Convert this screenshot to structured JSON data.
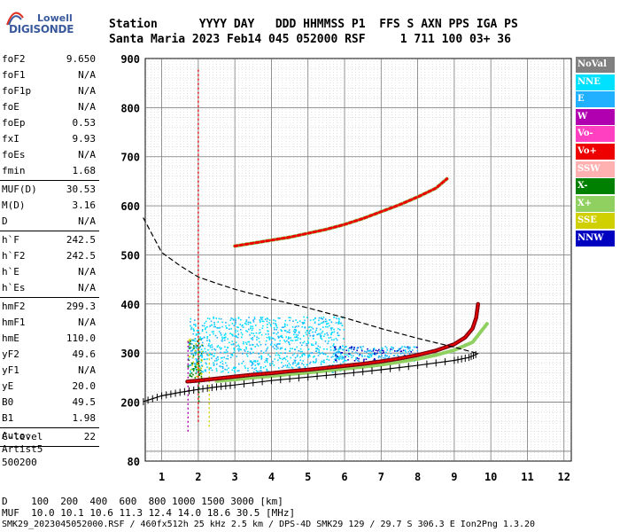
{
  "logo": {
    "line1": "Lowell",
    "line2": "DIGISONDE"
  },
  "header": {
    "labels": "Station      YYYY DAY   DDD HHMMSS P1  FFS S AXN PPS IGA PS",
    "values": "Santa Maria 2023 Feb14 045 052000 RSF     1 711 100 03+ 36"
  },
  "params": [
    {
      "name": "foF2",
      "value": "9.650"
    },
    {
      "name": "foF1",
      "value": "N/A"
    },
    {
      "name": "foF1p",
      "value": "N/A"
    },
    {
      "name": "foE",
      "value": "N/A"
    },
    {
      "name": "foEp",
      "value": "0.53"
    },
    {
      "name": "fxI",
      "value": "9.93"
    },
    {
      "name": "foEs",
      "value": "N/A"
    },
    {
      "name": "fmin",
      "value": "1.68"
    },
    {
      "sep": true
    },
    {
      "name": "MUF(D)",
      "value": "30.53"
    },
    {
      "name": "M(D)",
      "value": "3.16"
    },
    {
      "name": "D",
      "value": "N/A"
    },
    {
      "sep": true
    },
    {
      "name": "h`F",
      "value": "242.5"
    },
    {
      "name": "h`F2",
      "value": "242.5"
    },
    {
      "name": "h`E",
      "value": "N/A"
    },
    {
      "name": "h`Es",
      "value": "N/A"
    },
    {
      "sep": true
    },
    {
      "name": "hmF2",
      "value": "299.3"
    },
    {
      "name": "hmF1",
      "value": "N/A"
    },
    {
      "name": "hmE",
      "value": "110.0"
    },
    {
      "name": "yF2",
      "value": "49.6"
    },
    {
      "name": "yF1",
      "value": "N/A"
    },
    {
      "name": "yE",
      "value": "20.0"
    },
    {
      "name": "B0",
      "value": "49.5"
    },
    {
      "name": "B1",
      "value": "1.98"
    },
    {
      "sep": true
    },
    {
      "name": "C-level",
      "value": "22"
    },
    {
      "sep": true
    }
  ],
  "autoscale": {
    "line1": "Auto:",
    "line2": "Artist5",
    "line3": "500200"
  },
  "legend": [
    {
      "label": "NoVal",
      "color": "#808080"
    },
    {
      "label": "NNE",
      "color": "#00e0ff"
    },
    {
      "label": "E",
      "color": "#20b0ff"
    },
    {
      "label": "W",
      "color": "#b000b0"
    },
    {
      "label": "Vo-",
      "color": "#ff40c0"
    },
    {
      "label": "Vo+",
      "color": "#ee0000"
    },
    {
      "label": "SSW",
      "color": "#ffb0b0"
    },
    {
      "label": "X-",
      "color": "#008000"
    },
    {
      "label": "X+",
      "color": "#90d060"
    },
    {
      "label": "SSE",
      "color": "#d0d000"
    },
    {
      "label": "NNW",
      "color": "#0000c0"
    }
  ],
  "bottom": {
    "line1": "D    100  200  400  600  800 1000 1500 3000 [km]",
    "line2": "MUF  10.0 10.1 10.6 11.3 12.4 14.0 18.6 30.5 [MHz]",
    "line3": "SMK29_2023045052000.RSF / 460fx512h 25 kHz 2.5 km / DPS-4D SMK29 129 / 29.7 S 306.3 E Ion2Png 1.3.20"
  },
  "chart_data": {
    "type": "scatter",
    "xlabel": "",
    "ylabel": "",
    "xlim": [
      0.55,
      12.2
    ],
    "ylim": [
      80,
      900
    ],
    "xticks": [
      1,
      2,
      3,
      4,
      5,
      6,
      7,
      8,
      9,
      10,
      11,
      12
    ],
    "yticks": [
      80,
      200,
      300,
      400,
      500,
      600,
      700,
      800,
      900
    ],
    "grid": true,
    "series": [
      {
        "name": "Vo+",
        "x": [
          1.7,
          2.0,
          2.5,
          3.0,
          3.5,
          4.0,
          4.5,
          5.0,
          5.5,
          6.0,
          6.5,
          7.0,
          7.5,
          8.0,
          8.5,
          9.0,
          9.3,
          9.5,
          9.6,
          9.65
        ],
        "y": [
          242,
          244,
          248,
          252,
          256,
          259,
          263,
          266,
          270,
          274,
          278,
          283,
          289,
          296,
          305,
          318,
          332,
          350,
          372,
          400
        ]
      },
      {
        "name": "X+",
        "x": [
          2.5,
          3.0,
          3.5,
          4.0,
          4.5,
          5.0,
          5.5,
          6.0,
          6.5,
          7.0,
          7.5,
          8.0,
          8.5,
          9.0,
          9.5,
          9.9
        ],
        "y": [
          243,
          246,
          250,
          253,
          257,
          260,
          264,
          268,
          272,
          276,
          282,
          288,
          296,
          306,
          322,
          360
        ]
      },
      {
        "name": "Vo+ second hop",
        "x": [
          3.0,
          3.5,
          4.0,
          4.5,
          5.0,
          5.5,
          6.0,
          6.5,
          7.0,
          7.5,
          8.0,
          8.5,
          8.8
        ],
        "y": [
          518,
          524,
          530,
          536,
          544,
          552,
          562,
          574,
          588,
          602,
          618,
          636,
          655
        ]
      },
      {
        "name": "profile",
        "x": [
          0.5,
          1.0,
          1.5,
          2.0,
          2.5,
          3.0,
          4.0,
          5.0,
          6.0,
          7.0,
          8.0,
          9.0,
          9.4,
          9.65
        ],
        "y": [
          201,
          213,
          220,
          226,
          231,
          235,
          244,
          251,
          258,
          266,
          275,
          285,
          291,
          299
        ]
      },
      {
        "name": "topside",
        "x": [
          0.5,
          1.0,
          1.5,
          2.0,
          2.5,
          3.0,
          3.5,
          4.0,
          5.0,
          6.0,
          7.0,
          8.0,
          9.0,
          9.65
        ],
        "y": [
          575,
          505,
          478,
          455,
          442,
          430,
          420,
          410,
          392,
          372,
          350,
          330,
          312,
          299
        ]
      }
    ]
  }
}
